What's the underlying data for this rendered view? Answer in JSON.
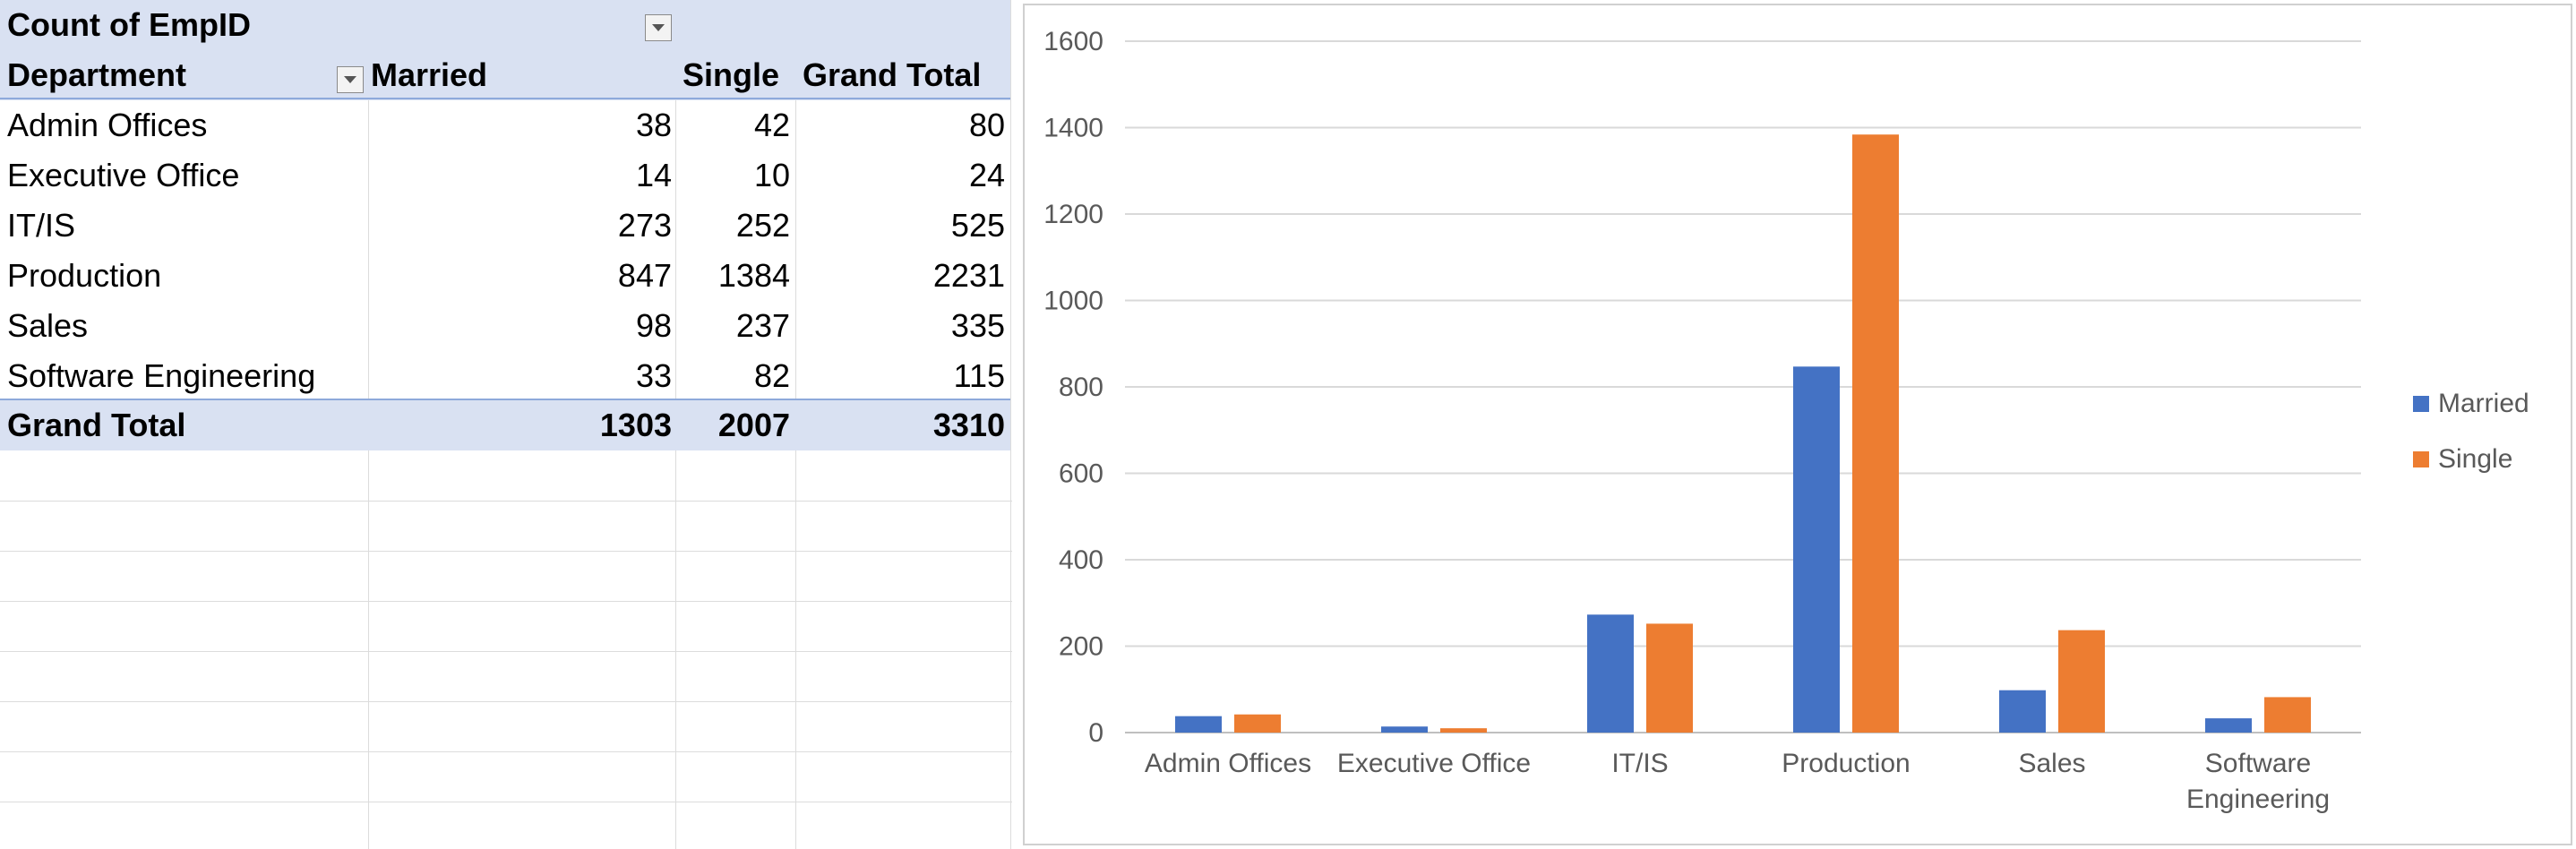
{
  "pivot": {
    "title": "Count of EmpID",
    "row_header": "Department",
    "col_headers": [
      "Married",
      "Single",
      "Grand Total"
    ],
    "rows": [
      {
        "department": "Admin Offices",
        "married": "38",
        "single": "42",
        "total": "80"
      },
      {
        "department": "Executive Office",
        "married": "14",
        "single": "10",
        "total": "24"
      },
      {
        "department": "IT/IS",
        "married": "273",
        "single": "252",
        "total": "525"
      },
      {
        "department": "Production",
        "married": "847",
        "single": "1384",
        "total": "2231"
      },
      {
        "department": "Sales",
        "married": "98",
        "single": "237",
        "total": "335"
      },
      {
        "department": "Software Engineering",
        "married": "33",
        "single": "82",
        "total": "115"
      }
    ],
    "grand_total": {
      "label": "Grand Total",
      "married": "1303",
      "single": "2007",
      "total": "3310"
    }
  },
  "chart_data": {
    "type": "bar",
    "title": "",
    "xlabel": "",
    "ylabel": "",
    "categories": [
      "Admin Offices",
      "Executive Office",
      "IT/IS",
      "Production",
      "Sales",
      "Software Engineering"
    ],
    "category_lines": [
      [
        "Admin Offices"
      ],
      [
        "Executive Office"
      ],
      [
        "IT/IS"
      ],
      [
        "Production"
      ],
      [
        "Sales"
      ],
      [
        "Software",
        "Engineering"
      ]
    ],
    "series": [
      {
        "name": "Married",
        "color": "#4472c4",
        "values": [
          38,
          14,
          273,
          847,
          98,
          33
        ]
      },
      {
        "name": "Single",
        "color": "#ed7d31",
        "values": [
          42,
          10,
          252,
          1384,
          237,
          82
        ]
      }
    ],
    "ylim": [
      0,
      1600
    ],
    "yticks": [
      0,
      200,
      400,
      600,
      800,
      1000,
      1200,
      1400,
      1600
    ],
    "grid": true,
    "legend": "right"
  }
}
